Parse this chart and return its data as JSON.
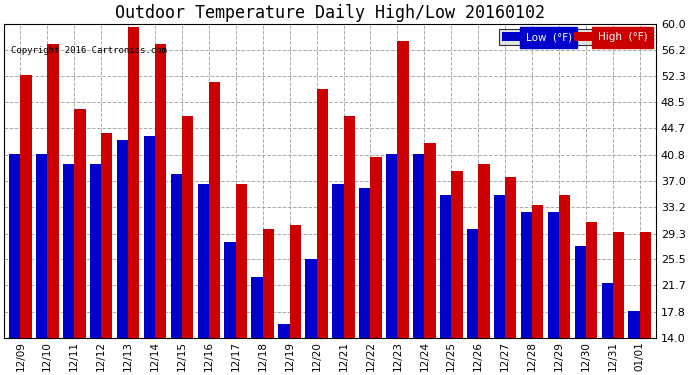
{
  "title": "Outdoor Temperature Daily High/Low 20160102",
  "copyright": "Copyright 2016 Cartronics.com",
  "legend_low": "Low  (°F)",
  "legend_high": "High  (°F)",
  "categories": [
    "12/09",
    "12/10",
    "12/11",
    "12/12",
    "12/13",
    "12/14",
    "12/15",
    "12/16",
    "12/17",
    "12/18",
    "12/19",
    "12/20",
    "12/21",
    "12/22",
    "12/23",
    "12/24",
    "12/25",
    "12/26",
    "12/27",
    "12/28",
    "12/29",
    "12/30",
    "12/31",
    "01/01"
  ],
  "low": [
    41.0,
    41.0,
    39.5,
    39.5,
    43.0,
    43.5,
    38.0,
    36.5,
    28.0,
    23.0,
    16.0,
    25.5,
    36.5,
    36.0,
    41.0,
    41.0,
    35.0,
    30.0,
    35.0,
    32.5,
    32.5,
    27.5,
    22.0,
    18.0
  ],
  "high": [
    52.5,
    57.0,
    47.5,
    44.0,
    59.5,
    57.0,
    46.5,
    51.5,
    36.5,
    30.0,
    30.5,
    50.5,
    46.5,
    40.5,
    57.5,
    42.5,
    38.5,
    39.5,
    37.5,
    33.5,
    35.0,
    31.0,
    29.5,
    29.5
  ],
  "low_color": "#0000cc",
  "high_color": "#cc0000",
  "bg_color": "#ffffff",
  "plot_bg_color": "#ffffff",
  "grid_color": "#aaaaaa",
  "title_fontsize": 12,
  "yticks": [
    14.0,
    17.8,
    21.7,
    25.5,
    29.3,
    33.2,
    37.0,
    40.8,
    44.7,
    48.5,
    52.3,
    56.2,
    60.0
  ],
  "ymin": 14.0,
  "ymax": 60.0
}
